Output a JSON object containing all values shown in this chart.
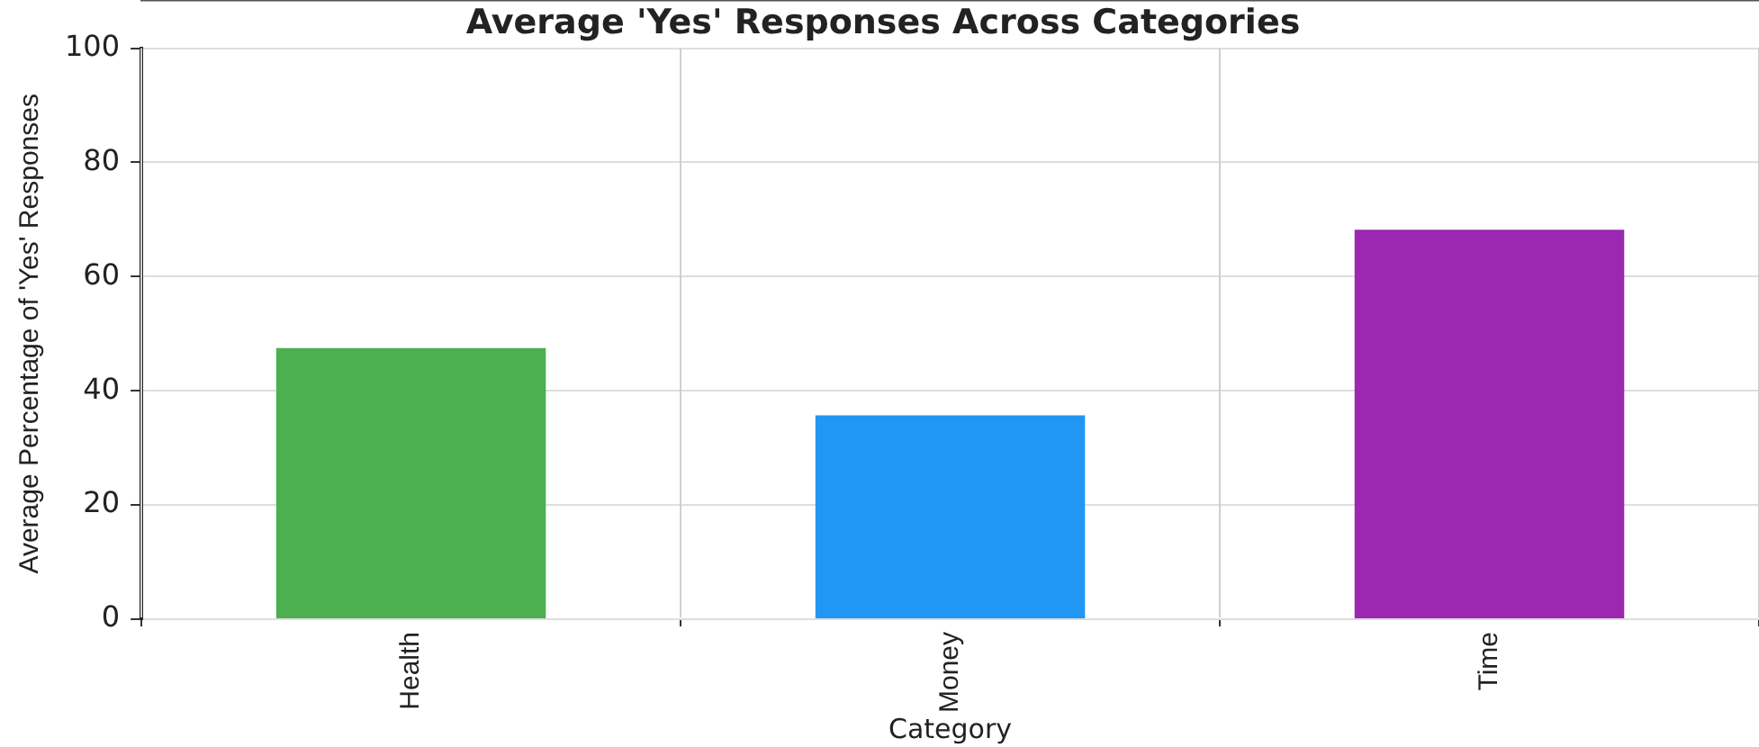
{
  "chart_data": {
    "type": "bar",
    "title": "Average 'Yes' Responses Across Categories",
    "xlabel": "Category",
    "ylabel": "Average Percentage of 'Yes' Responses",
    "categories": [
      "Health",
      "Money",
      "Time"
    ],
    "values": [
      47.5,
      35.7,
      68.2
    ],
    "colors": [
      "#4caf50",
      "#2196f3",
      "#9c27b0"
    ],
    "ylim": [
      0,
      100
    ],
    "yticks": [
      0,
      20,
      40,
      60,
      80,
      100
    ],
    "grid": true
  }
}
